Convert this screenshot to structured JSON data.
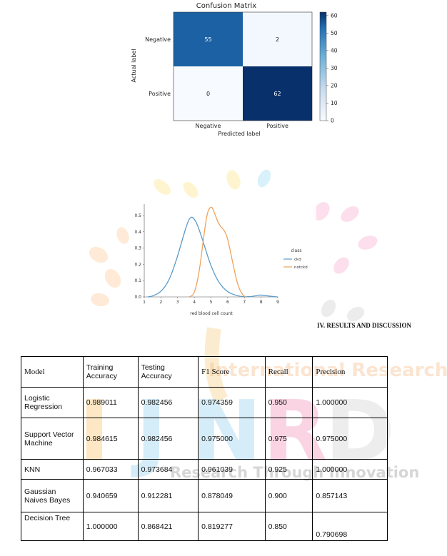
{
  "watermark": {
    "arc_text": "International Research Journal",
    "letters": [
      "I",
      "J",
      "N",
      "R",
      "D"
    ],
    "tagline": "Research Through Innovation"
  },
  "chart_data": [
    {
      "type": "heatmap",
      "title": "Confusion Matrix",
      "xlabel": "Predicted label",
      "ylabel": "Actual label",
      "x_categories": [
        "Negative",
        "Positive"
      ],
      "y_categories": [
        "Negative",
        "Positive"
      ],
      "values": [
        [
          55,
          2
        ],
        [
          0,
          62
        ]
      ],
      "colorbar": {
        "ticks": [
          0,
          10,
          20,
          30,
          40,
          50,
          60
        ],
        "range": [
          0,
          62
        ]
      },
      "colors": {
        "low": "#f7fbff",
        "high": "#08306b"
      }
    },
    {
      "type": "line",
      "xlabel": "red blood cell count",
      "ylabel": "",
      "xlim": [
        1,
        9
      ],
      "ylim": [
        0,
        0.57
      ],
      "x_ticks": [
        1,
        2,
        3,
        4,
        5,
        6,
        7,
        8,
        9
      ],
      "y_ticks": [
        "0.0",
        "0.1",
        "0.2",
        "0.3",
        "0.4",
        "0.5"
      ],
      "legend": {
        "title": "class",
        "placement": "right"
      },
      "series": [
        {
          "name": "ckd",
          "color": "#5b9bc8",
          "x": [
            1.2,
            1.5,
            2.0,
            2.5,
            3.0,
            3.3,
            3.6,
            3.8,
            4.0,
            4.2,
            4.5,
            4.8,
            5.0,
            5.3,
            5.6,
            6.0,
            6.5,
            7.0,
            7.5,
            7.8,
            8.0,
            8.3,
            8.6,
            9.0
          ],
          "y": [
            0.0,
            0.004,
            0.03,
            0.1,
            0.25,
            0.36,
            0.46,
            0.495,
            0.48,
            0.44,
            0.35,
            0.25,
            0.19,
            0.12,
            0.07,
            0.03,
            0.008,
            0.0,
            0.003,
            0.01,
            0.012,
            0.008,
            0.003,
            0.0
          ]
        },
        {
          "name": "notckd",
          "color": "#f0a25a",
          "x": [
            3.7,
            4.0,
            4.3,
            4.6,
            4.8,
            5.0,
            5.1,
            5.3,
            5.5,
            5.8,
            6.0,
            6.3,
            6.6,
            6.9,
            7.1
          ],
          "y": [
            0.0,
            0.015,
            0.15,
            0.4,
            0.53,
            0.555,
            0.545,
            0.49,
            0.44,
            0.41,
            0.36,
            0.21,
            0.07,
            0.01,
            0.0
          ]
        }
      ]
    }
  ],
  "section_heading": "IV. RESULTS AND DISCUSSION",
  "table": {
    "headers": [
      "Model",
      "Training Accuracy",
      "Testing Accuracy",
      "F1 Score",
      "Recall",
      "Precision"
    ],
    "rows": [
      [
        "Logistic Regression",
        "0.989011",
        "0.982456",
        "0.974359",
        "0.950",
        "1.000000"
      ],
      [
        "Support Vector Machine",
        "0.984615",
        "0.982456",
        "0.975000",
        "0.975",
        "0.975000"
      ],
      [
        "KNN",
        "0.967033",
        "0.973684",
        "0.961039",
        "0.925",
        "1.000000"
      ],
      [
        "Gaussian Naives Bayes",
        "0.940659",
        "0.912281",
        "0.878049",
        "0.900",
        "0.857143"
      ],
      [
        "Decision Tree",
        "1.000000",
        "0.868421",
        "0.819277",
        "0.850",
        "0.790698"
      ]
    ]
  }
}
